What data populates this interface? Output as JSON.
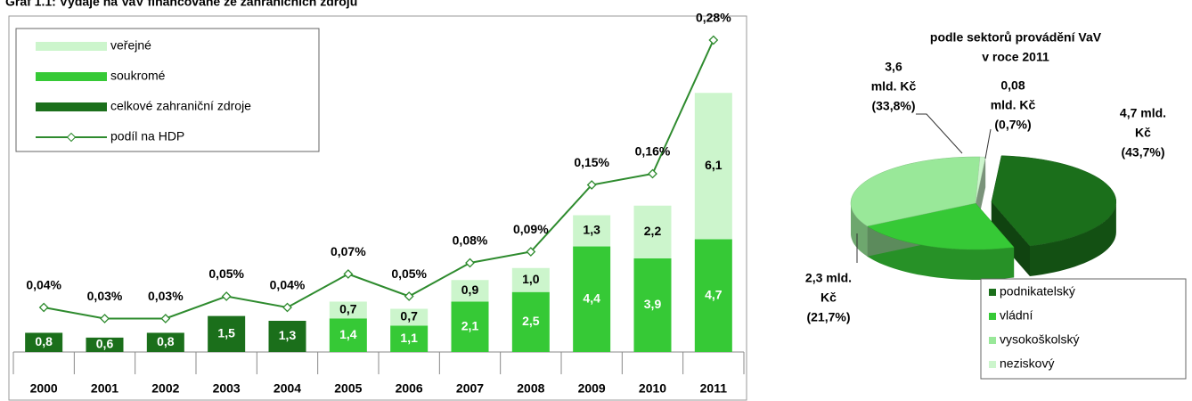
{
  "chart_data": [
    {
      "type": "bar",
      "title": "Graf 1.1: Výdaje na VaV financované ze zahraničních zdrojů",
      "categories": [
        "2000",
        "2001",
        "2002",
        "2003",
        "2004",
        "2005",
        "2006",
        "2007",
        "2008",
        "2009",
        "2010",
        "2011"
      ],
      "stacked": true,
      "ylim": [
        0,
        13
      ],
      "y2lim": [
        0,
        0.28
      ],
      "series": [
        {
          "name": "celkové zahraniční zdroje",
          "color": "#1b6f1b",
          "values": [
            0.8,
            0.6,
            0.8,
            1.5,
            1.3,
            null,
            null,
            null,
            null,
            null,
            null,
            null
          ],
          "value_labels": [
            "0,8",
            "0,6",
            "0,8",
            "1,5",
            "1,3",
            null,
            null,
            null,
            null,
            null,
            null,
            null
          ]
        },
        {
          "name": "soukromé",
          "color": "#36c936",
          "values": [
            null,
            null,
            null,
            null,
            null,
            1.4,
            1.1,
            2.1,
            2.5,
            4.4,
            3.9,
            4.7
          ],
          "value_labels": [
            null,
            null,
            null,
            null,
            null,
            "1,4",
            "1,1",
            "2,1",
            "2,5",
            "4,4",
            "3,9",
            "4,7"
          ]
        },
        {
          "name": "veřejné",
          "color": "#ccf5cc",
          "values": [
            null,
            null,
            null,
            null,
            null,
            0.7,
            0.7,
            0.9,
            1.0,
            1.3,
            2.2,
            6.1
          ],
          "value_labels": [
            null,
            null,
            null,
            null,
            null,
            "0,7",
            "0,7",
            "0,9",
            "1,0",
            "1,3",
            "2,2",
            "6,1"
          ]
        },
        {
          "name": "podíl na HDP",
          "type": "line",
          "axis": "y2",
          "color": "#2e8b2e",
          "values": [
            0.04,
            0.03,
            0.03,
            0.05,
            0.04,
            0.07,
            0.05,
            0.08,
            0.09,
            0.15,
            0.16,
            0.28
          ],
          "value_labels": [
            "0,04%",
            "0,03%",
            "0,03%",
            "0,05%",
            "0,04%",
            "0,07%",
            "0,05%",
            "0,08%",
            "0,09%",
            "0,15%",
            "0,16%",
            "0,28%"
          ]
        }
      ]
    },
    {
      "type": "pie",
      "title": [
        "podle sektorů provádění VaV",
        "v roce 2011"
      ],
      "categories": [
        "podnikatelský",
        "vládní",
        "vysokoškolský",
        "neziskový"
      ],
      "values": [
        43.7,
        21.7,
        33.8,
        0.7
      ],
      "colors": [
        "#1b6f1b",
        "#36c936",
        "#99e899",
        "#ccf5cc"
      ],
      "value_labels": [
        [
          "4,7 mld.",
          "Kč",
          "(43,7%)"
        ],
        [
          "2,3 mld.",
          "Kč",
          "(21,7%)"
        ],
        [
          "3,6",
          "mld. Kč",
          "(33,8%)"
        ],
        [
          "0,08",
          "mld. Kč",
          "(0,7%)"
        ]
      ]
    }
  ]
}
